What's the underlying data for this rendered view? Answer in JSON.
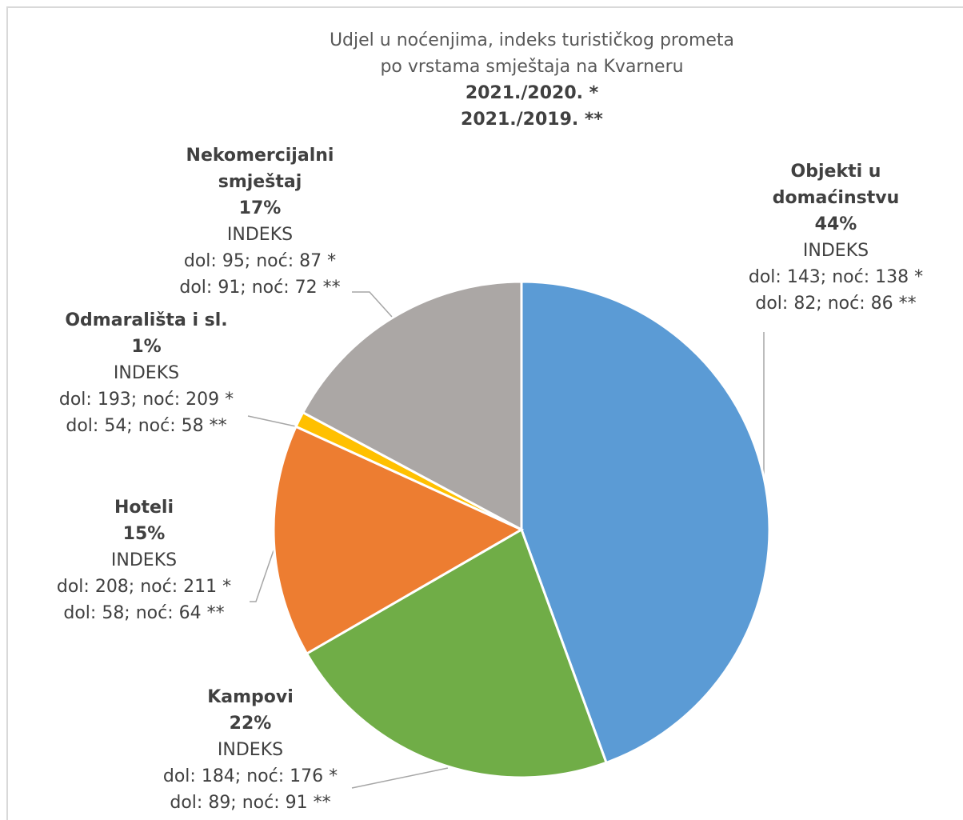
{
  "chart_data": {
    "type": "pie",
    "title": [
      "Udjel u noćenjima, indeks turističkog prometa",
      "po vrstama smještaja na Kvarneru"
    ],
    "subtitle": [
      "2021./2020. *",
      "2021./2019.  **"
    ],
    "categories": [
      "Objekti u domaćinstvu",
      "Kampovi",
      "Hoteli",
      "Odmarališta i sl.",
      "Nekomercijalni smještaj"
    ],
    "values": [
      44,
      22,
      15,
      1,
      17
    ],
    "value_labels": [
      "44%",
      "22%",
      "15%",
      "1%",
      "17%"
    ],
    "colors": [
      "#5b9bd5",
      "#70ad47",
      "#ed7d31",
      "#ffc000",
      "#aba7a5"
    ],
    "index_label": "INDEKS",
    "annotations": [
      [
        "dol: 143; noć: 138 *",
        "dol: 82; noć: 86 **"
      ],
      [
        "dol: 184; noć: 176 *",
        "dol: 89; noć: 91 **"
      ],
      [
        "dol: 208; noć: 211 *",
        "dol: 58; noć: 64 **"
      ],
      [
        "dol: 193; noć: 209 *",
        "dol: 54; noć: 58 **"
      ],
      [
        "dol: 95; noć: 87 *",
        "dol: 91; noć: 72 **"
      ]
    ]
  }
}
